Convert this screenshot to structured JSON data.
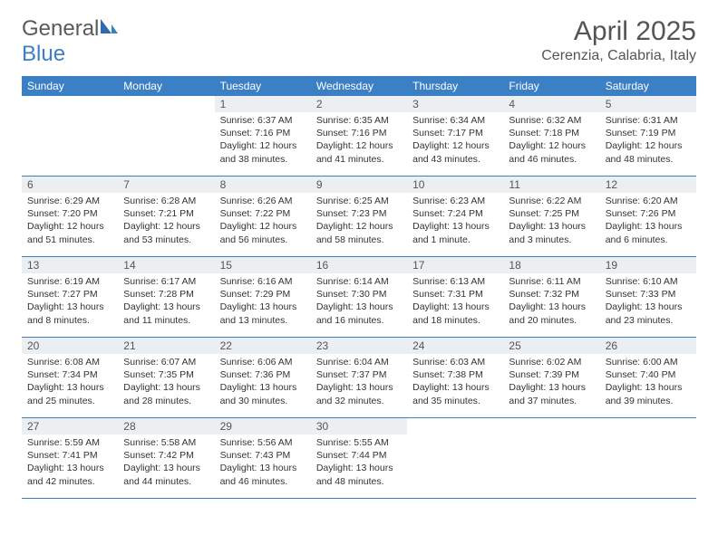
{
  "brand": {
    "part1": "General",
    "part2": "Blue"
  },
  "title": "April 2025",
  "location": "Cerenzia, Calabria, Italy",
  "colors": {
    "header_bg": "#3b7fc4",
    "header_text": "#ffffff",
    "daynum_bg": "#eceff1",
    "text": "#333333",
    "title": "#555555",
    "row_border": "#3b7fc4"
  },
  "weekdays": [
    "Sunday",
    "Monday",
    "Tuesday",
    "Wednesday",
    "Thursday",
    "Friday",
    "Saturday"
  ],
  "weeks": [
    [
      null,
      null,
      {
        "d": "1",
        "sr": "6:37 AM",
        "ss": "7:16 PM",
        "dl": "12 hours and 38 minutes."
      },
      {
        "d": "2",
        "sr": "6:35 AM",
        "ss": "7:16 PM",
        "dl": "12 hours and 41 minutes."
      },
      {
        "d": "3",
        "sr": "6:34 AM",
        "ss": "7:17 PM",
        "dl": "12 hours and 43 minutes."
      },
      {
        "d": "4",
        "sr": "6:32 AM",
        "ss": "7:18 PM",
        "dl": "12 hours and 46 minutes."
      },
      {
        "d": "5",
        "sr": "6:31 AM",
        "ss": "7:19 PM",
        "dl": "12 hours and 48 minutes."
      }
    ],
    [
      {
        "d": "6",
        "sr": "6:29 AM",
        "ss": "7:20 PM",
        "dl": "12 hours and 51 minutes."
      },
      {
        "d": "7",
        "sr": "6:28 AM",
        "ss": "7:21 PM",
        "dl": "12 hours and 53 minutes."
      },
      {
        "d": "8",
        "sr": "6:26 AM",
        "ss": "7:22 PM",
        "dl": "12 hours and 56 minutes."
      },
      {
        "d": "9",
        "sr": "6:25 AM",
        "ss": "7:23 PM",
        "dl": "12 hours and 58 minutes."
      },
      {
        "d": "10",
        "sr": "6:23 AM",
        "ss": "7:24 PM",
        "dl": "13 hours and 1 minute."
      },
      {
        "d": "11",
        "sr": "6:22 AM",
        "ss": "7:25 PM",
        "dl": "13 hours and 3 minutes."
      },
      {
        "d": "12",
        "sr": "6:20 AM",
        "ss": "7:26 PM",
        "dl": "13 hours and 6 minutes."
      }
    ],
    [
      {
        "d": "13",
        "sr": "6:19 AM",
        "ss": "7:27 PM",
        "dl": "13 hours and 8 minutes."
      },
      {
        "d": "14",
        "sr": "6:17 AM",
        "ss": "7:28 PM",
        "dl": "13 hours and 11 minutes."
      },
      {
        "d": "15",
        "sr": "6:16 AM",
        "ss": "7:29 PM",
        "dl": "13 hours and 13 minutes."
      },
      {
        "d": "16",
        "sr": "6:14 AM",
        "ss": "7:30 PM",
        "dl": "13 hours and 16 minutes."
      },
      {
        "d": "17",
        "sr": "6:13 AM",
        "ss": "7:31 PM",
        "dl": "13 hours and 18 minutes."
      },
      {
        "d": "18",
        "sr": "6:11 AM",
        "ss": "7:32 PM",
        "dl": "13 hours and 20 minutes."
      },
      {
        "d": "19",
        "sr": "6:10 AM",
        "ss": "7:33 PM",
        "dl": "13 hours and 23 minutes."
      }
    ],
    [
      {
        "d": "20",
        "sr": "6:08 AM",
        "ss": "7:34 PM",
        "dl": "13 hours and 25 minutes."
      },
      {
        "d": "21",
        "sr": "6:07 AM",
        "ss": "7:35 PM",
        "dl": "13 hours and 28 minutes."
      },
      {
        "d": "22",
        "sr": "6:06 AM",
        "ss": "7:36 PM",
        "dl": "13 hours and 30 minutes."
      },
      {
        "d": "23",
        "sr": "6:04 AM",
        "ss": "7:37 PM",
        "dl": "13 hours and 32 minutes."
      },
      {
        "d": "24",
        "sr": "6:03 AM",
        "ss": "7:38 PM",
        "dl": "13 hours and 35 minutes."
      },
      {
        "d": "25",
        "sr": "6:02 AM",
        "ss": "7:39 PM",
        "dl": "13 hours and 37 minutes."
      },
      {
        "d": "26",
        "sr": "6:00 AM",
        "ss": "7:40 PM",
        "dl": "13 hours and 39 minutes."
      }
    ],
    [
      {
        "d": "27",
        "sr": "5:59 AM",
        "ss": "7:41 PM",
        "dl": "13 hours and 42 minutes."
      },
      {
        "d": "28",
        "sr": "5:58 AM",
        "ss": "7:42 PM",
        "dl": "13 hours and 44 minutes."
      },
      {
        "d": "29",
        "sr": "5:56 AM",
        "ss": "7:43 PM",
        "dl": "13 hours and 46 minutes."
      },
      {
        "d": "30",
        "sr": "5:55 AM",
        "ss": "7:44 PM",
        "dl": "13 hours and 48 minutes."
      },
      null,
      null,
      null
    ]
  ],
  "labels": {
    "sunrise": "Sunrise: ",
    "sunset": "Sunset: ",
    "daylight": "Daylight: "
  }
}
